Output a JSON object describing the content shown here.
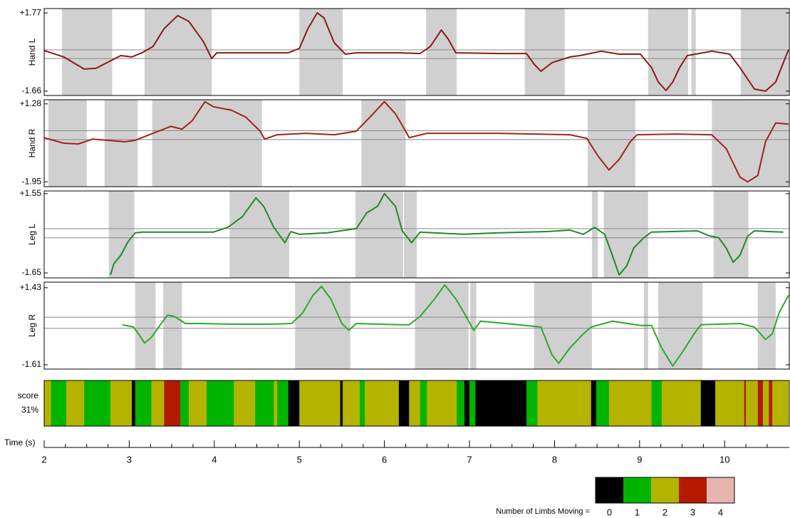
{
  "chart_data": [
    {
      "type": "line",
      "ylabel": "Hand L",
      "color": "#8b1a1a",
      "xlim": [
        2,
        10.76
      ],
      "ylim": [
        -1.85,
        1.96
      ],
      "yticks": [
        {
          "value": 1.77,
          "label": "+1.77"
        },
        -1.66
      ],
      "ref_lines": [
        0.15,
        -0.23
      ],
      "shaded": [
        [
          2.21,
          2.8
        ],
        [
          3.18,
          3.97
        ],
        [
          5.0,
          5.51
        ],
        [
          6.49,
          6.85
        ],
        [
          7.65,
          8.12
        ],
        [
          9.1,
          9.57
        ],
        [
          9.61,
          9.66
        ],
        [
          10.19,
          10.75
        ]
      ],
      "x": [
        2.0,
        2.23,
        2.47,
        2.61,
        2.74,
        2.9,
        3.03,
        3.15,
        3.28,
        3.41,
        3.57,
        3.7,
        3.87,
        3.97,
        4.03,
        4.24,
        4.66,
        4.87,
        5.0,
        5.1,
        5.21,
        5.29,
        5.41,
        5.54,
        5.67,
        6.17,
        6.42,
        6.54,
        6.67,
        6.75,
        6.84,
        7.34,
        7.67,
        7.76,
        7.84,
        7.97,
        8.18,
        8.3,
        8.55,
        8.76,
        9.01,
        9.14,
        9.22,
        9.31,
        9.39,
        9.47,
        9.56,
        9.85,
        10.06,
        10.18,
        10.35,
        10.48,
        10.6,
        10.75
      ],
      "values": [
        0.12,
        -0.16,
        -0.69,
        -0.66,
        -0.41,
        -0.1,
        -0.16,
        0.02,
        0.3,
        1.08,
        1.65,
        1.4,
        0.52,
        -0.23,
        0.02,
        0.02,
        0.02,
        0.02,
        0.21,
        1.08,
        1.77,
        1.55,
        0.46,
        -0.04,
        0.02,
        0.02,
        -0.01,
        0.3,
        1.02,
        0.62,
        0.02,
        -0.01,
        -0.01,
        -0.48,
        -0.79,
        -0.41,
        -0.16,
        -0.1,
        0.09,
        -0.04,
        -0.04,
        -0.63,
        -1.26,
        -1.63,
        -1.26,
        -0.63,
        -0.1,
        0.09,
        -0.04,
        -0.63,
        -1.57,
        -1.66,
        -1.26,
        0.15
      ]
    },
    {
      "type": "line",
      "ylabel": "Hand R",
      "color": "#a52020",
      "xlim": [
        2,
        10.76
      ],
      "ylim": [
        -2.15,
        1.45
      ],
      "yticks": [
        {
          "value": 1.28,
          "label": "+1.28"
        },
        -1.95
      ],
      "ref_lines": [
        0.17,
        -0.2
      ],
      "shaded": [
        [
          2.05,
          2.5
        ],
        [
          2.71,
          3.1
        ],
        [
          3.27,
          4.56
        ],
        [
          5.73,
          6.25
        ],
        [
          8.39,
          8.95
        ],
        [
          9.85,
          10.75
        ]
      ],
      "x": [
        2.0,
        2.23,
        2.4,
        2.57,
        2.74,
        2.95,
        3.07,
        3.28,
        3.49,
        3.62,
        3.74,
        3.89,
        3.99,
        4.2,
        4.37,
        4.54,
        4.59,
        4.74,
        5.08,
        5.41,
        5.67,
        5.83,
        6.0,
        6.13,
        6.25,
        6.29,
        6.5,
        7.34,
        8.18,
        8.38,
        8.51,
        8.64,
        8.76,
        8.89,
        8.97,
        9.43,
        9.85,
        10.02,
        10.18,
        10.27,
        10.39,
        10.48,
        10.6,
        10.75
      ],
      "values": [
        -0.12,
        -0.35,
        -0.38,
        -0.18,
        -0.23,
        -0.29,
        -0.23,
        0.06,
        0.35,
        0.23,
        0.58,
        1.37,
        1.16,
        1.02,
        0.73,
        0.15,
        -0.18,
        0.0,
        0.06,
        0.0,
        0.15,
        0.73,
        1.37,
        0.87,
        0.15,
        -0.12,
        0.06,
        0.06,
        0.0,
        -0.15,
        -0.87,
        -1.46,
        -1.02,
        -0.29,
        0.0,
        0.03,
        0.0,
        -0.58,
        -1.75,
        -1.95,
        -1.69,
        -0.29,
        0.49,
        0.44
      ]
    },
    {
      "type": "line",
      "ylabel": "Leg L",
      "color": "#1e8c1e",
      "xlim": [
        2,
        10.76
      ],
      "ylim": [
        -1.85,
        1.66
      ],
      "yticks": [
        {
          "value": 1.55,
          "label": "+1.55"
        },
        -1.65
      ],
      "ref_lines": [
        0.14,
        -0.23
      ],
      "shaded": [
        [
          2.76,
          3.06
        ],
        [
          4.18,
          4.88
        ],
        [
          5.66,
          6.22
        ],
        [
          6.23,
          6.38
        ],
        [
          8.44,
          8.51
        ],
        [
          8.58,
          9.1
        ],
        [
          9.87,
          10.28
        ]
      ],
      "x": [
        2.78,
        2.82,
        2.9,
        2.99,
        3.07,
        3.15,
        3.49,
        3.99,
        4.16,
        4.33,
        4.49,
        4.58,
        4.7,
        4.83,
        4.9,
        5.0,
        5.33,
        5.67,
        5.79,
        5.92,
        6.0,
        6.13,
        6.21,
        6.32,
        6.42,
        6.92,
        7.34,
        7.92,
        8.18,
        8.34,
        8.47,
        8.59,
        8.68,
        8.76,
        8.85,
        8.93,
        9.05,
        9.14,
        9.68,
        9.81,
        9.93,
        10.02,
        10.1,
        10.18,
        10.27,
        10.35,
        10.52,
        10.69
      ],
      "values": [
        -1.73,
        -1.28,
        -0.94,
        -0.37,
        -0.03,
        0.0,
        0.0,
        0.0,
        0.19,
        0.62,
        1.38,
        1.04,
        0.19,
        -0.43,
        0.02,
        -0.09,
        -0.03,
        0.14,
        0.77,
        1.04,
        1.55,
        1.04,
        0.05,
        -0.43,
        0.0,
        -0.09,
        -0.03,
        0.02,
        0.08,
        -0.09,
        0.19,
        -0.09,
        -0.94,
        -1.73,
        -1.36,
        -0.65,
        -0.23,
        0.0,
        0.05,
        -0.14,
        -0.23,
        -0.65,
        -1.22,
        -0.94,
        -0.17,
        0.05,
        0.02,
        0.0
      ]
    },
    {
      "type": "line",
      "ylabel": "Leg R",
      "color": "#2aaa2a",
      "xlim": [
        2,
        10.76
      ],
      "ylim": [
        -1.78,
        1.65
      ],
      "yticks": [
        {
          "value": 1.43,
          "label": "+1.43"
        },
        -1.61
      ],
      "ref_lines": [
        0.27,
        -0.17
      ],
      "shaded": [
        [
          3.07,
          3.31
        ],
        [
          3.4,
          3.62
        ],
        [
          4.95,
          5.6
        ],
        [
          6.36,
          6.99
        ],
        [
          7.01,
          7.08
        ],
        [
          7.76,
          8.44
        ],
        [
          9.05,
          9.1
        ],
        [
          9.22,
          9.74
        ],
        [
          10.39,
          10.6
        ]
      ],
      "x": [
        2.92,
        3.05,
        3.11,
        3.18,
        3.26,
        3.36,
        3.45,
        3.53,
        3.66,
        3.82,
        4.24,
        4.66,
        4.91,
        5.04,
        5.16,
        5.26,
        5.37,
        5.5,
        5.58,
        5.67,
        6.17,
        6.29,
        6.42,
        6.59,
        6.71,
        6.84,
        6.96,
        7.05,
        7.13,
        7.51,
        7.84,
        7.97,
        8.05,
        8.18,
        8.34,
        8.43,
        8.68,
        9.01,
        9.14,
        9.26,
        9.39,
        9.51,
        9.64,
        9.72,
        10.18,
        10.35,
        10.48,
        10.56,
        10.64,
        10.75
      ],
      "values": [
        -0.03,
        -0.12,
        -0.39,
        -0.75,
        -0.53,
        -0.06,
        0.35,
        0.3,
        0.02,
        0.02,
        -0.01,
        -0.01,
        0.02,
        0.44,
        1.13,
        1.48,
        0.99,
        0.02,
        -0.25,
        0.02,
        -0.03,
        -0.03,
        0.3,
        0.99,
        1.54,
        0.99,
        0.3,
        -0.25,
        0.11,
        -0.01,
        -0.12,
        -1.22,
        -1.55,
        -0.95,
        -0.39,
        -0.12,
        0.11,
        -0.06,
        -0.06,
        -0.95,
        -1.66,
        -1.08,
        -0.39,
        -0.03,
        0.02,
        -0.12,
        -0.61,
        -0.39,
        0.44,
        1.13
      ]
    },
    {
      "type": "state_bar",
      "title": "score",
      "subtitle": "31%",
      "xlabel": "Time (s)",
      "xlim": [
        2,
        10.76
      ],
      "xticks": [
        2,
        3,
        4,
        5,
        6,
        7,
        8,
        9,
        10
      ],
      "minor_xticks": [
        2.25,
        2.5,
        2.75,
        3.25,
        3.5,
        3.75,
        4.25,
        4.5,
        4.75,
        5.25,
        5.5,
        5.75,
        6.25,
        6.5,
        6.75,
        7.25,
        7.5,
        7.75,
        8.25,
        8.5,
        8.75,
        9.25,
        9.5,
        9.75,
        10.25,
        10.5
      ],
      "breaks": [
        2.0,
        2.08,
        2.26,
        2.47,
        2.78,
        3.03,
        3.07,
        3.26,
        3.41,
        3.6,
        3.7,
        3.91,
        4.23,
        4.48,
        4.7,
        4.74,
        4.87,
        5.0,
        5.48,
        5.51,
        5.71,
        5.77,
        6.17,
        6.29,
        6.42,
        6.5,
        6.85,
        6.94,
        7.0,
        7.07,
        7.67,
        7.8,
        8.43,
        8.49,
        8.64,
        9.14,
        9.26,
        9.72,
        9.89,
        10.23,
        10.25,
        10.39,
        10.45,
        10.52,
        10.56,
        10.6,
        10.75
      ],
      "states": [
        2,
        1,
        2,
        1,
        2,
        0,
        1,
        2,
        3,
        1,
        2,
        1,
        2,
        1,
        2,
        1,
        0,
        2,
        0,
        2,
        1,
        2,
        0,
        2,
        1,
        2,
        1,
        0,
        1,
        0,
        1,
        2,
        0,
        1,
        2,
        1,
        2,
        0,
        2,
        3,
        2,
        3,
        2,
        3,
        2,
        2
      ],
      "legend": {
        "title": "Number of Limbs Moving =",
        "categories": [
          0,
          1,
          2,
          3,
          4
        ],
        "colors": [
          "#000000",
          "#00b400",
          "#b4b400",
          "#b41a00",
          "#e8b4b0"
        ]
      }
    }
  ]
}
